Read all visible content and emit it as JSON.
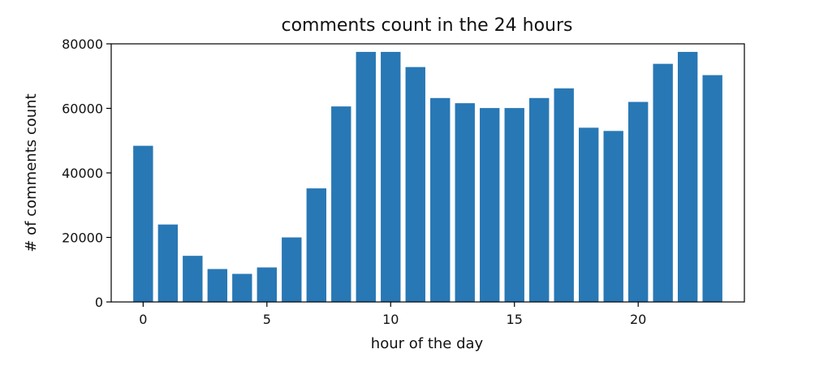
{
  "chart_data": {
    "type": "bar",
    "title": "comments count in the 24 hours",
    "xlabel": "hour of the day",
    "ylabel": "# of comments count",
    "x": [
      0,
      1,
      2,
      3,
      4,
      5,
      6,
      7,
      8,
      9,
      10,
      11,
      12,
      13,
      14,
      15,
      16,
      17,
      18,
      19,
      20,
      21,
      22,
      23
    ],
    "values": [
      48400,
      24000,
      14300,
      10200,
      8700,
      10700,
      20000,
      35200,
      60600,
      77500,
      77500,
      72800,
      63200,
      61600,
      60100,
      60100,
      63200,
      66200,
      54000,
      53000,
      62000,
      73800,
      77500,
      70300
    ],
    "xticks": [
      "0",
      "5",
      "10",
      "15",
      "20"
    ],
    "yticks": [
      "0",
      "20000",
      "40000",
      "60000",
      "80000"
    ],
    "xlim": [
      -1.29,
      24.29
    ],
    "ylim": [
      0,
      80000
    ],
    "bar_color": "#2878b5",
    "grid": false,
    "legend": "none"
  }
}
